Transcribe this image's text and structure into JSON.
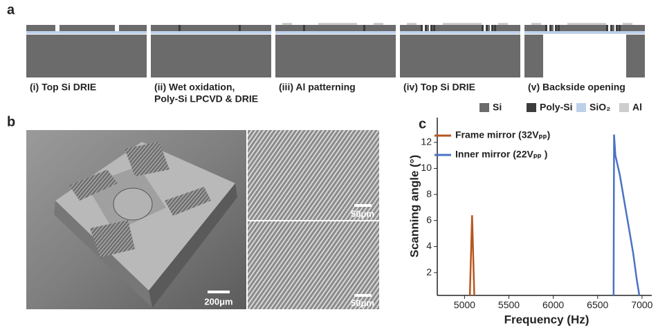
{
  "panel_a": {
    "label": "a",
    "steps": [
      [
        "(i) Top Si DRIE"
      ],
      [
        "(ii) Wet oxidation,",
        "Poly-Si LPCVD & DRIE"
      ],
      [
        "(iii) Al patterning"
      ],
      [
        "(iv) Top Si DRIE"
      ],
      [
        "(v) Backside opening"
      ]
    ],
    "legend": [
      {
        "name": "Si",
        "color": "#6b6b6b"
      },
      {
        "name": "Poly-Si",
        "color": "#3c3c3c"
      },
      {
        "name": "SiO₂",
        "color": "#bcd0ea"
      },
      {
        "name": "Al",
        "color": "#cdcdcd"
      }
    ]
  },
  "panel_b": {
    "label": "b",
    "scale_bars": [
      "200μm",
      "50μm",
      "50μm"
    ]
  },
  "chart_data": {
    "type": "line",
    "label": "c",
    "x_label": "Frequency (Hz)",
    "y_label": "Scanning angle (°)",
    "xlim": [
      4693,
      7110
    ],
    "xticks": [
      5000,
      5500,
      6000,
      6500,
      7000
    ],
    "ylim": [
      0.25,
      13.9
    ],
    "yticks": [
      2,
      4,
      6,
      8,
      10,
      12
    ],
    "series": [
      {
        "name": "Frame mirror (32Vₚₚ)",
        "color": "#b5561f",
        "x": [
          5060,
          5085,
          5110
        ],
        "values": [
          0.25,
          6.4,
          0.25
        ]
      },
      {
        "name": "Inner mirror (22Vₚₚ )",
        "color": "#4a72c4",
        "x": [
          6680,
          6685,
          6700,
          6750,
          6800,
          6850,
          6900,
          6940,
          6970
        ],
        "values": [
          0.25,
          12.6,
          11,
          9.5,
          7.5,
          5.5,
          3.5,
          1.5,
          0.25
        ]
      }
    ]
  }
}
